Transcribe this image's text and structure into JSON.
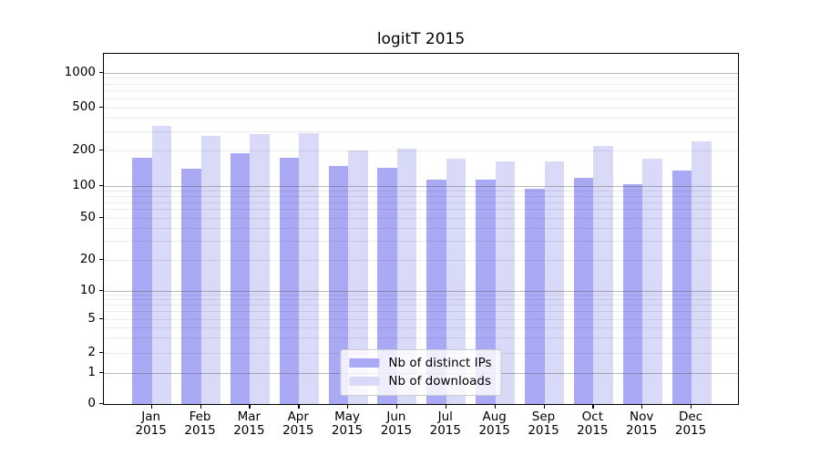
{
  "chart_data": {
    "type": "bar",
    "title": "logitT 2015",
    "xlabel": "",
    "ylabel": "",
    "year": "2015",
    "categories": [
      "Jan",
      "Feb",
      "Mar",
      "Apr",
      "May",
      "Jun",
      "Jul",
      "Aug",
      "Sep",
      "Oct",
      "Nov",
      "Dec"
    ],
    "series": [
      {
        "name": "Nb of distinct IPs",
        "color": "#a9a9f5",
        "values": [
          173,
          139,
          187,
          172,
          147,
          142,
          113,
          113,
          93,
          116,
          103,
          133
        ]
      },
      {
        "name": "Nb of downloads",
        "color": "#d9d9f8",
        "values": [
          333,
          270,
          280,
          285,
          197,
          206,
          168,
          159,
          161,
          220,
          168,
          239
        ]
      }
    ],
    "y_scale": "symlog",
    "y_ticks": [
      0,
      1,
      2,
      5,
      10,
      20,
      50,
      100,
      200,
      500,
      1000
    ],
    "ylim": [
      0,
      1500
    ],
    "grid": true,
    "legend_position": "lower center",
    "colors": {
      "grid_major": "#b0b0b0",
      "grid_minor": "#ececec",
      "axis": "#000000",
      "background": "#ffffff"
    }
  }
}
